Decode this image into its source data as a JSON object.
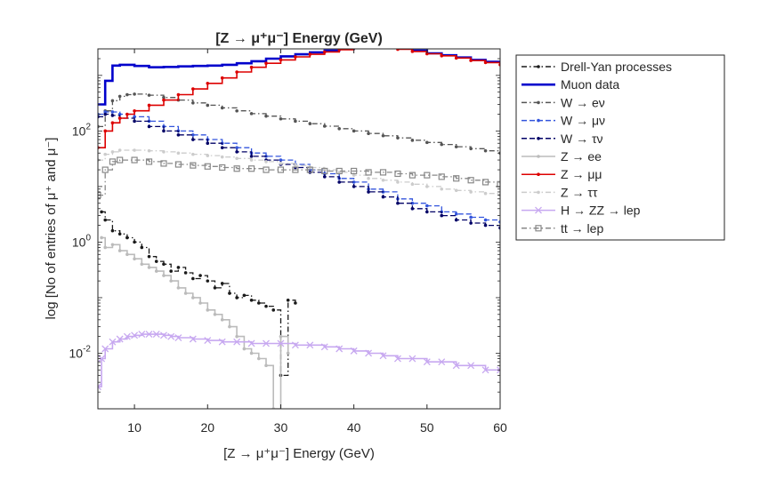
{
  "chart_data": {
    "type": "line",
    "title": "[Z → μ⁺μ⁻] Energy (GeV)",
    "xlabel": "[Z → μ⁺μ⁻] Energy (GeV)",
    "ylabel": "log  [No of entries of μ⁺ and μ⁻]",
    "xlim": [
      5,
      60
    ],
    "ylim": [
      0.001,
      3000
    ],
    "yscale": "log",
    "x_ticks": [
      "10",
      "20",
      "30",
      "40",
      "50",
      "60"
    ],
    "y_ticks": [
      {
        "base": "10",
        "exp": "-2",
        "value": 0.01
      },
      {
        "base": "10",
        "exp": "0",
        "value": 1
      },
      {
        "base": "10",
        "exp": "2",
        "value": 100
      }
    ],
    "legend_position": "outside-right",
    "grid": false,
    "series": [
      {
        "name": "Drell-Yan processes",
        "color": "#1a1a1a",
        "dash": "dashdot",
        "marker": "dot",
        "x": [
          5.5,
          6,
          7,
          8,
          9,
          10,
          11,
          12,
          13,
          14,
          15,
          16,
          17,
          18,
          19,
          20,
          21,
          22,
          23,
          24,
          25,
          26,
          27,
          28,
          29,
          30,
          31,
          32
        ],
        "y": [
          3.5,
          2.5,
          1.6,
          1.4,
          1.2,
          1.0,
          0.8,
          0.55,
          0.45,
          0.4,
          0.3,
          0.35,
          0.28,
          0.22,
          0.25,
          0.2,
          0.15,
          0.18,
          0.12,
          0.1,
          0.11,
          0.09,
          0.08,
          0.07,
          0.06,
          0.004,
          0.09,
          0.08
        ]
      },
      {
        "name": "Muon data",
        "color": "#0000cc",
        "dash": "solid",
        "marker": "none",
        "x": [
          5,
          6,
          7,
          8,
          10,
          12,
          14,
          16,
          18,
          20,
          22,
          24,
          26,
          28,
          30,
          32,
          34,
          36,
          38,
          40,
          42,
          43,
          44,
          46,
          48,
          50,
          52,
          54,
          56,
          58,
          60
        ],
        "y": [
          300,
          800,
          1500,
          1550,
          1480,
          1400,
          1420,
          1450,
          1480,
          1500,
          1550,
          1650,
          1800,
          2000,
          2200,
          2400,
          2600,
          2800,
          3000,
          3200,
          3400,
          3450,
          3350,
          3100,
          2800,
          2500,
          2300,
          2100,
          1900,
          1750,
          1650
        ]
      },
      {
        "name": "W → eν",
        "color": "#555555",
        "dash": "dashdot",
        "marker": "dot",
        "x": [
          5,
          6,
          7,
          8,
          9,
          10,
          12,
          14,
          16,
          18,
          20,
          22,
          24,
          26,
          28,
          30,
          32,
          34,
          36,
          38,
          40,
          42,
          44,
          46,
          48,
          50,
          52,
          54,
          56,
          58,
          60
        ],
        "y": [
          120,
          230,
          350,
          420,
          450,
          460,
          440,
          400,
          360,
          320,
          290,
          260,
          230,
          205,
          185,
          165,
          150,
          135,
          122,
          110,
          100,
          90,
          82,
          75,
          68,
          62,
          57,
          52,
          48,
          44,
          40
        ]
      },
      {
        "name": "W → μν",
        "color": "#3355dd",
        "dash": "dashed",
        "marker": "dot",
        "x": [
          5,
          6,
          7,
          8,
          10,
          12,
          14,
          16,
          18,
          20,
          22,
          24,
          26,
          28,
          30,
          32,
          34,
          36,
          38,
          40,
          42,
          44,
          46,
          48,
          50,
          52,
          54,
          56,
          58,
          60
        ],
        "y": [
          200,
          220,
          220,
          200,
          180,
          150,
          120,
          100,
          85,
          70,
          60,
          50,
          40,
          35,
          30,
          25,
          20,
          17,
          14,
          12,
          9,
          8,
          6,
          5,
          4.5,
          3.5,
          3.2,
          2.8,
          2.5,
          2.3
        ]
      },
      {
        "name": "W → τν",
        "color": "#000066",
        "dash": "dashed",
        "marker": "dot",
        "x": [
          5,
          6,
          7,
          8,
          10,
          12,
          14,
          16,
          18,
          20,
          22,
          24,
          26,
          28,
          30,
          32,
          34,
          36,
          38,
          40,
          42,
          44,
          46,
          48,
          50,
          52,
          54,
          56,
          58,
          60
        ],
        "y": [
          180,
          200,
          190,
          170,
          150,
          120,
          100,
          85,
          70,
          60,
          50,
          42,
          35,
          30,
          25,
          22,
          18,
          15,
          12,
          10,
          8,
          6.5,
          5,
          4,
          3.5,
          3,
          2.5,
          2.2,
          2,
          1.8
        ]
      },
      {
        "name": "Z → ee",
        "color": "#bbbbbb",
        "dash": "solid",
        "marker": "dot",
        "x": [
          5.5,
          6,
          7,
          8,
          9,
          10,
          11,
          12,
          13,
          14,
          15,
          16,
          17,
          18,
          19,
          20,
          21,
          22,
          23,
          24,
          25,
          26,
          27,
          28,
          29,
          30,
          31
        ],
        "y": [
          1.2,
          0.8,
          0.9,
          0.7,
          0.6,
          0.5,
          0.4,
          0.35,
          0.3,
          0.25,
          0.2,
          0.15,
          0.12,
          0.1,
          0.08,
          0.06,
          0.05,
          0.04,
          0.03,
          0.02,
          0.012,
          0.01,
          0.008,
          0.006,
          0.001,
          0.02,
          0.01
        ]
      },
      {
        "name": "Z → μμ",
        "color": "#dd0000",
        "dash": "solid",
        "marker": "dot",
        "x": [
          5,
          6,
          7,
          8,
          9,
          10,
          12,
          14,
          16,
          18,
          20,
          22,
          24,
          26,
          28,
          30,
          32,
          34,
          36,
          38,
          40,
          42,
          44,
          46,
          48,
          50,
          52,
          54,
          56,
          58,
          60
        ],
        "y": [
          50,
          100,
          140,
          170,
          200,
          230,
          290,
          360,
          450,
          570,
          720,
          900,
          1150,
          1400,
          1650,
          1900,
          2150,
          2400,
          2650,
          2900,
          3100,
          3300,
          3200,
          2950,
          2700,
          2450,
          2250,
          2050,
          1850,
          1700,
          1550
        ]
      },
      {
        "name": "Z → ττ",
        "color": "#cccccc",
        "dash": "dashdot",
        "marker": "dot",
        "x": [
          5,
          6,
          7,
          8,
          10,
          12,
          14,
          16,
          18,
          20,
          22,
          24,
          26,
          28,
          30,
          32,
          34,
          36,
          38,
          40,
          42,
          44,
          46,
          48,
          50,
          52,
          54,
          56,
          58,
          60
        ],
        "y": [
          30,
          38,
          42,
          45,
          45,
          44,
          42,
          40,
          38,
          36,
          34,
          32,
          30,
          28,
          26,
          24,
          22,
          20,
          18,
          16,
          14,
          13,
          12,
          11,
          10,
          9,
          8.5,
          8,
          7.5,
          7
        ]
      },
      {
        "name": "H → ZZ → lep",
        "color": "#c7a8f0",
        "dash": "solid",
        "marker": "x",
        "x": [
          5,
          5.5,
          6,
          7,
          8,
          9,
          10,
          11,
          12,
          13,
          14,
          15,
          16,
          18,
          20,
          22,
          24,
          26,
          28,
          30,
          32,
          34,
          36,
          38,
          40,
          42,
          44,
          46,
          48,
          50,
          52,
          54,
          56,
          58,
          60
        ],
        "y": [
          0.0025,
          0.008,
          0.012,
          0.016,
          0.018,
          0.02,
          0.021,
          0.022,
          0.022,
          0.022,
          0.021,
          0.02,
          0.019,
          0.018,
          0.017,
          0.016,
          0.016,
          0.015,
          0.015,
          0.015,
          0.014,
          0.014,
          0.013,
          0.012,
          0.011,
          0.01,
          0.009,
          0.008,
          0.008,
          0.007,
          0.007,
          0.006,
          0.006,
          0.005,
          0.005
        ]
      },
      {
        "name": "tt → lep",
        "color": "#888888",
        "dash": "dashdot",
        "marker": "square",
        "x": [
          5,
          6,
          7,
          8,
          10,
          12,
          14,
          16,
          18,
          20,
          22,
          24,
          26,
          28,
          30,
          32,
          34,
          36,
          38,
          40,
          42,
          44,
          46,
          48,
          50,
          52,
          54,
          56,
          58,
          60
        ],
        "y": [
          7,
          20,
          28,
          30,
          30,
          28,
          26,
          25,
          24,
          23,
          22,
          21,
          21,
          20,
          20,
          20,
          20,
          19,
          19,
          19,
          18,
          18,
          17,
          16,
          16,
          15,
          14,
          13,
          12,
          11
        ]
      }
    ]
  }
}
